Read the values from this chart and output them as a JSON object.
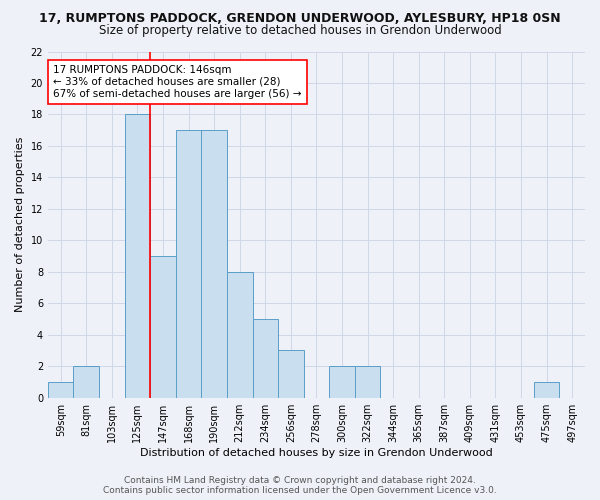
{
  "title": "17, RUMPTONS PADDOCK, GRENDON UNDERWOOD, AYLESBURY, HP18 0SN",
  "subtitle": "Size of property relative to detached houses in Grendon Underwood",
  "xlabel": "Distribution of detached houses by size in Grendon Underwood",
  "ylabel": "Number of detached properties",
  "bin_labels": [
    "59sqm",
    "81sqm",
    "103sqm",
    "125sqm",
    "147sqm",
    "168sqm",
    "190sqm",
    "212sqm",
    "234sqm",
    "256sqm",
    "278sqm",
    "300sqm",
    "322sqm",
    "344sqm",
    "365sqm",
    "387sqm",
    "409sqm",
    "431sqm",
    "453sqm",
    "475sqm",
    "497sqm"
  ],
  "counts": [
    1,
    2,
    0,
    18,
    9,
    17,
    17,
    8,
    5,
    3,
    0,
    2,
    2,
    0,
    0,
    0,
    0,
    0,
    0,
    1,
    0
  ],
  "bar_color": "#c9dff0",
  "bar_edge_color": "#5b9ec9",
  "redline_bin": 4,
  "ylim": [
    0,
    22
  ],
  "yticks": [
    0,
    2,
    4,
    6,
    8,
    10,
    12,
    14,
    16,
    18,
    20,
    22
  ],
  "annotation_text_line1": "17 RUMPTONS PADDOCK: 146sqm",
  "annotation_text_line2": "← 33% of detached houses are smaller (28)",
  "annotation_text_line3": "67% of semi-detached houses are larger (56) →",
  "footer_line1": "Contains HM Land Registry data © Crown copyright and database right 2024.",
  "footer_line2": "Contains public sector information licensed under the Open Government Licence v3.0.",
  "background_color": "#eef2f8",
  "grid_color": "#d0d8e8",
  "title_fontsize": 9,
  "subtitle_fontsize": 8.5,
  "axis_label_fontsize": 8,
  "tick_fontsize": 7,
  "annotation_fontsize": 7.5,
  "footer_fontsize": 6.5
}
